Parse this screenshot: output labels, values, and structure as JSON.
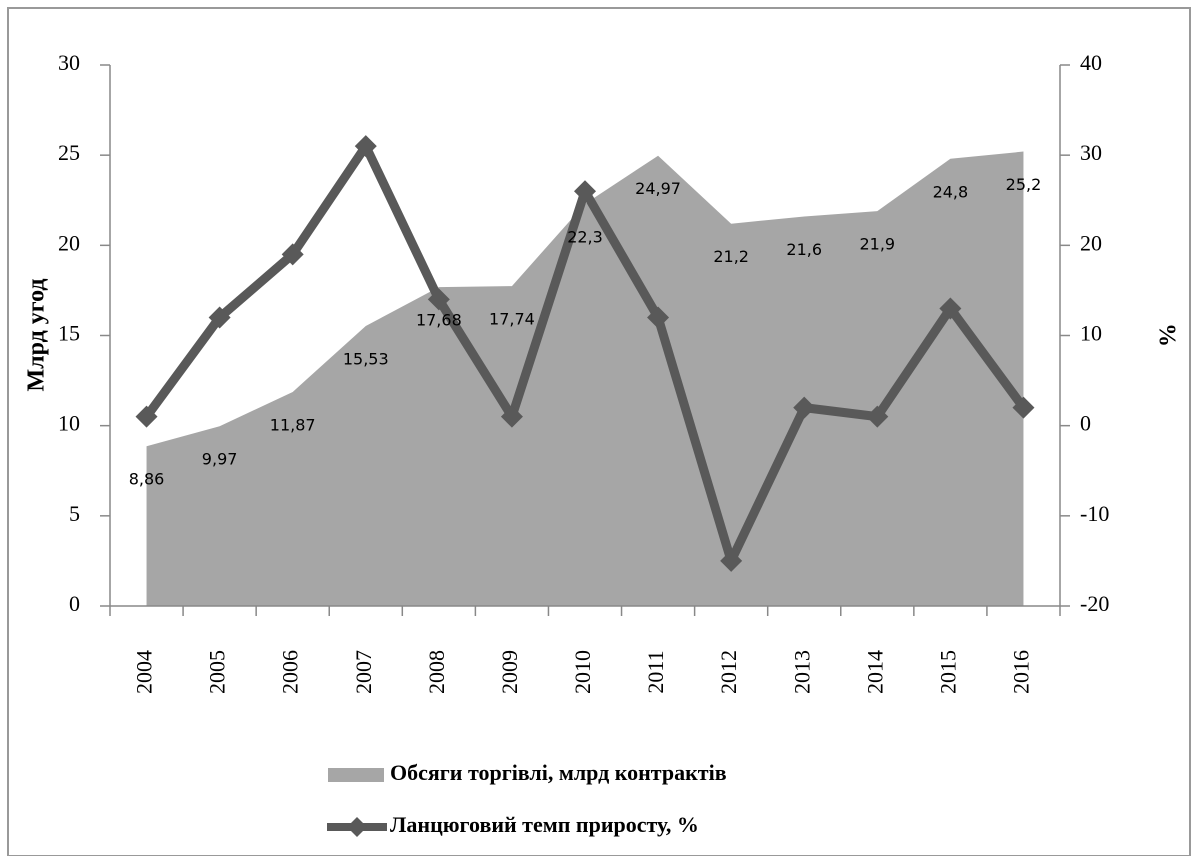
{
  "chart_data": {
    "type": "combo",
    "ylabel": "Млрд угод",
    "y2label": "%",
    "categories": [
      "2004",
      "2005",
      "2006",
      "2007",
      "2008",
      "2009",
      "2010",
      "2011",
      "2012",
      "2013",
      "2014",
      "2015",
      "2016"
    ],
    "series": [
      {
        "name": "Обсяги торгівлі, млрд контрактів",
        "type": "area",
        "color": "#a6a6a6",
        "values": [
          8.86,
          9.97,
          11.87,
          15.53,
          17.68,
          17.74,
          22.3,
          24.97,
          21.2,
          21.6,
          21.9,
          24.8,
          25.2
        ],
        "value_labels": [
          "8,86",
          "9,97",
          "11,87",
          "15,53",
          "17,68",
          "17,74",
          "22,3",
          "24,97",
          "21,2",
          "21,6",
          "21,9",
          "24,8",
          "25,2"
        ]
      },
      {
        "name": "Ланцюговий темп приросту, %",
        "type": "line",
        "color": "#595959",
        "axis": "y2",
        "values": [
          1,
          12,
          19,
          31,
          14,
          1,
          26,
          12,
          -15,
          2,
          1,
          13,
          2
        ]
      }
    ],
    "ylim": [
      0,
      30
    ],
    "yticks": [
      0,
      5,
      10,
      15,
      20,
      25,
      30
    ],
    "y2lim": [
      -20,
      40
    ],
    "y2ticks": [
      -20,
      -10,
      0,
      10,
      20,
      30,
      40
    ],
    "grid": false,
    "legend": "bottom"
  }
}
